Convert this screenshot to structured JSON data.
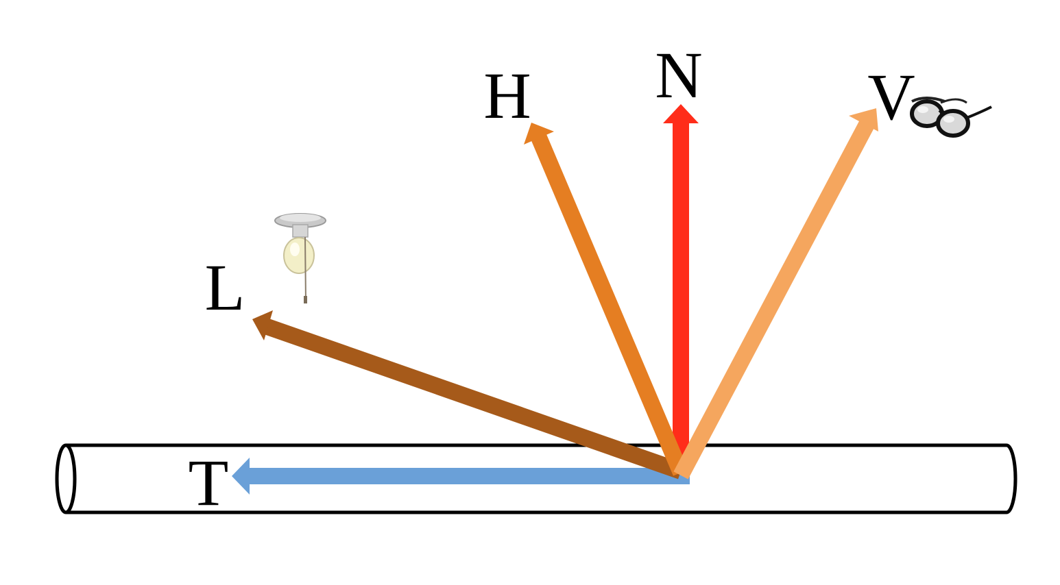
{
  "diagram": {
    "labels": {
      "normal": "N",
      "halfway": "H",
      "view": "V",
      "light": "L",
      "tangent": "T"
    },
    "icons": {
      "light": "light-bulb-icon",
      "view": "eyeglasses-icon"
    },
    "colors": {
      "normal": "#ff2d1a",
      "halfway": "#e57e22",
      "view": "#f5a65e",
      "light": "#a65a1a",
      "tangent": "#6aa0d8",
      "outline": "#000000"
    }
  }
}
